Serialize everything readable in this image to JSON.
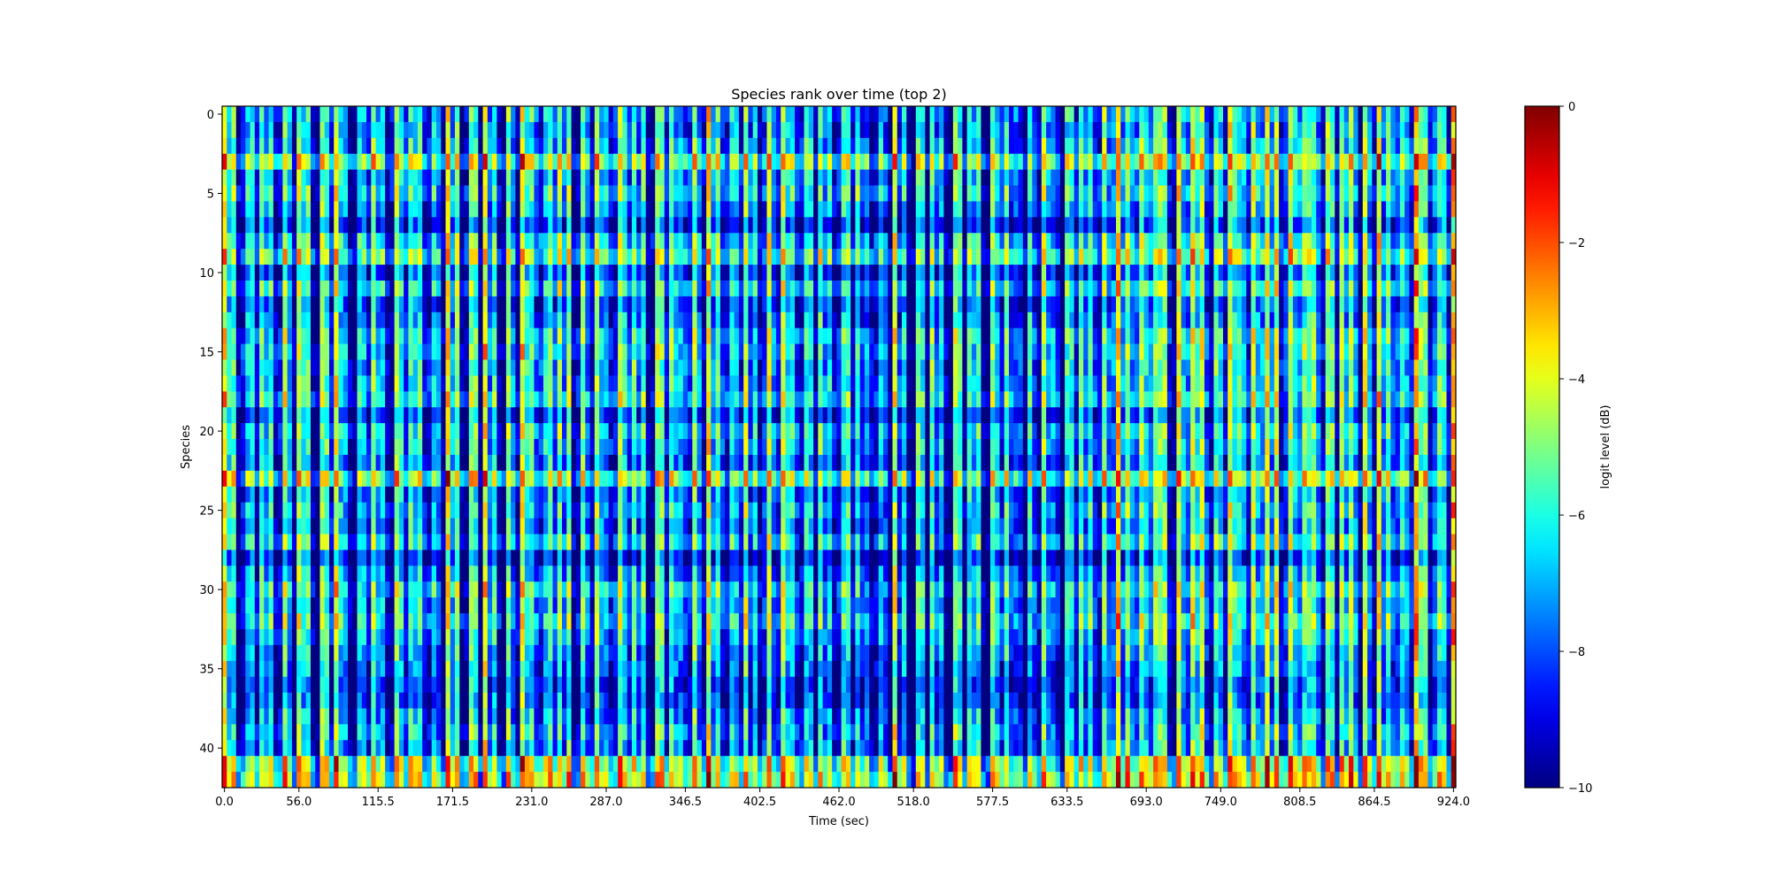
{
  "chart_data": {
    "type": "heatmap",
    "title": "Species rank over time (top 2)",
    "xlabel": "Time (sec)",
    "ylabel": "Species",
    "colorbar_label": "logit level (dB)",
    "colormap": "jet",
    "value_range": [
      -10,
      0
    ],
    "n_rows": 43,
    "n_cols": 265,
    "col_step_sec": 3.5,
    "x_ticks": [
      "0.0",
      "56.0",
      "115.5",
      "171.5",
      "231.0",
      "287.0",
      "346.5",
      "402.5",
      "462.0",
      "518.0",
      "577.5",
      "633.5",
      "693.0",
      "749.0",
      "808.5",
      "864.5",
      "924.0"
    ],
    "x_tick_values": [
      0,
      56,
      115.5,
      171.5,
      231,
      287,
      346.5,
      402.5,
      462,
      518,
      577.5,
      633.5,
      693,
      749,
      808.5,
      864.5,
      924
    ],
    "y_ticks": [
      "0",
      "5",
      "10",
      "15",
      "20",
      "25",
      "30",
      "35",
      "40"
    ],
    "y_tick_values": [
      0,
      5,
      10,
      15,
      20,
      25,
      30,
      35,
      40
    ],
    "colorbar_ticks": [
      "0",
      "−2",
      "−4",
      "−6",
      "−8",
      "−10"
    ],
    "colorbar_tick_values": [
      0,
      -2,
      -4,
      -6,
      -8,
      -10
    ],
    "approx_model": {
      "note_values": "approximate per-species mean level (dB) and periodic per-column offset",
      "row_mean_db": [
        -7.5,
        -7.8,
        -7.5,
        -5.5,
        -7.5,
        -7,
        -7.8,
        -9,
        -7,
        -6,
        -8.5,
        -7,
        -8.5,
        -8,
        -7,
        -7.2,
        -7.5,
        -7.3,
        -6.8,
        -8.5,
        -7.2,
        -7.5,
        -8,
        -5.5,
        -8,
        -7.5,
        -8,
        -7,
        -9.2,
        -8,
        -6.8,
        -7.5,
        -6.8,
        -7.5,
        -8,
        -8.2,
        -8.8,
        -8.8,
        -8,
        -7.5,
        -7.8,
        -5.2,
        -4.8
      ],
      "col_period_offset_db": [
        3,
        0.5,
        1.5,
        -1.2,
        -2,
        2,
        1,
        -1.5
      ]
    }
  }
}
